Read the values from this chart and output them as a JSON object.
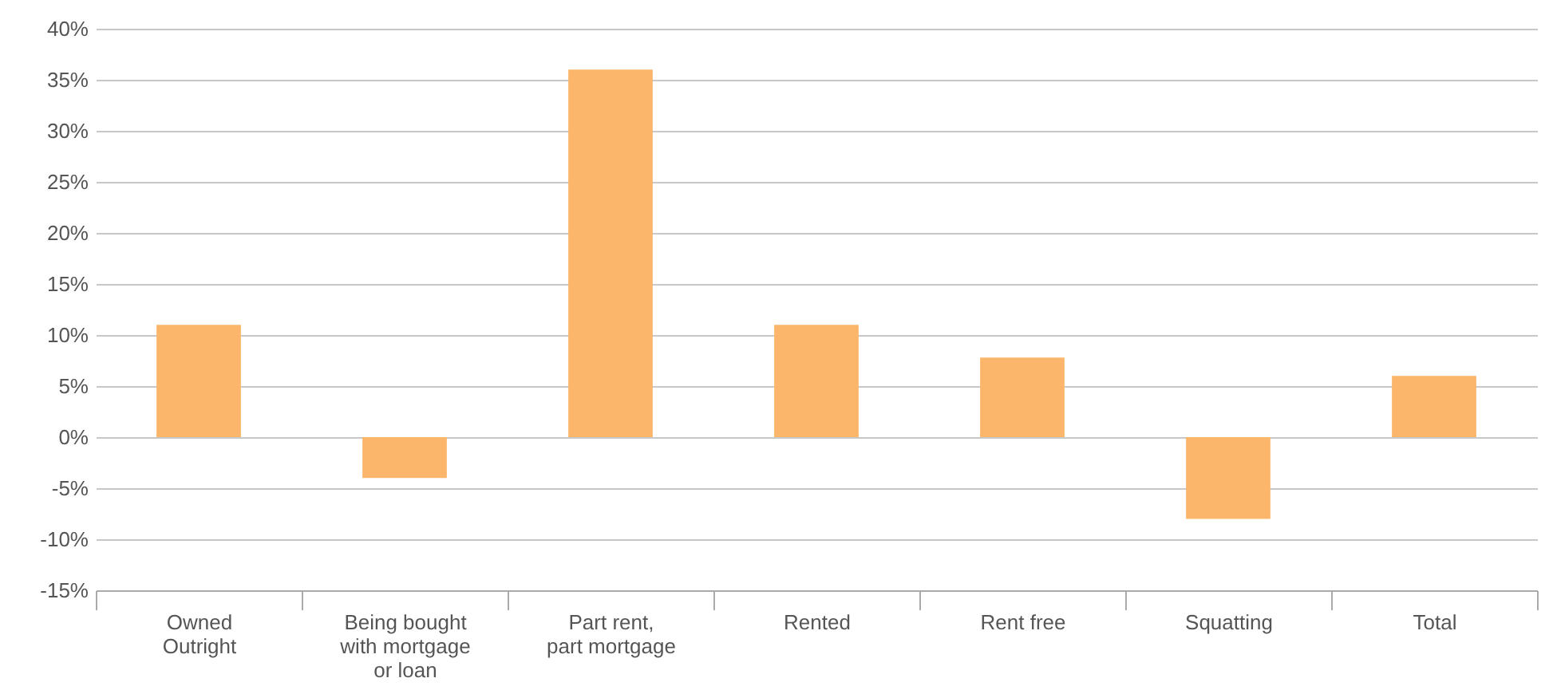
{
  "chart_data": {
    "type": "bar",
    "categories": [
      "Owned Outright",
      "Being bought with mortgage or loan",
      "Part rent, part mortgage",
      "Rented",
      "Rent free",
      "Squatting",
      "Total"
    ],
    "values": [
      11,
      -4,
      36,
      11,
      7.8,
      -8,
      6
    ],
    "color": "#fbb66b",
    "ylim": [
      -15,
      40
    ],
    "yticks": [
      {
        "value": -15,
        "label": "-15%"
      },
      {
        "value": -10,
        "label": "-10%"
      },
      {
        "value": -5,
        "label": "-5%"
      },
      {
        "value": 0,
        "label": "0%"
      },
      {
        "value": 5,
        "label": "5%"
      },
      {
        "value": 10,
        "label": "10%"
      },
      {
        "value": 15,
        "label": "15%"
      },
      {
        "value": 20,
        "label": "20%"
      },
      {
        "value": 25,
        "label": "25%"
      },
      {
        "value": 30,
        "label": "30%"
      },
      {
        "value": 35,
        "label": "35%"
      },
      {
        "value": 40,
        "label": "40%"
      }
    ],
    "grid": "y"
  }
}
